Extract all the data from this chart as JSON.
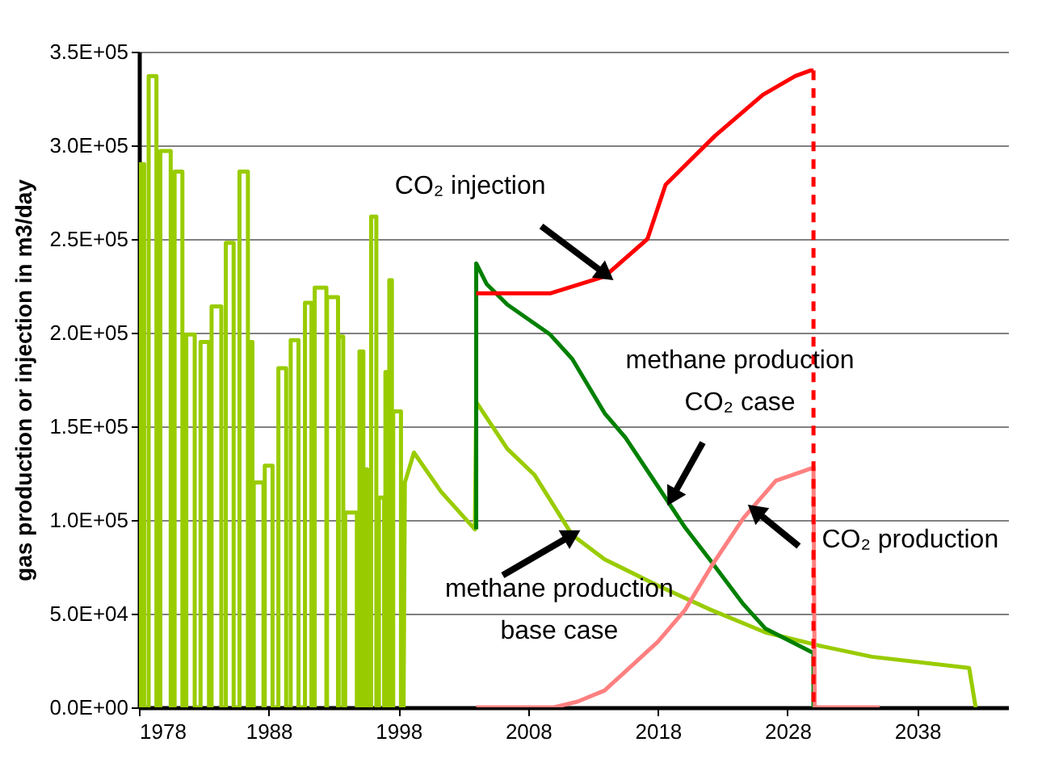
{
  "chart_data": {
    "type": "line",
    "ylabel": "gas production or injection in m3/day",
    "xlim": [
      1978,
      2045
    ],
    "xticks": [
      1978,
      1988,
      1998,
      2008,
      2018,
      2028,
      2038
    ],
    "ylim": [
      0,
      350000
    ],
    "yticks": [
      {
        "value": 0,
        "label": "0.0E+00"
      },
      {
        "value": 50000,
        "label": "5.0E+04"
      },
      {
        "value": 100000,
        "label": "1.0E+05"
      },
      {
        "value": 150000,
        "label": "1.5E+05"
      },
      {
        "value": 200000,
        "label": "2.0E+05"
      },
      {
        "value": 250000,
        "label": "2.5E+05"
      },
      {
        "value": 300000,
        "label": "3.0E+05"
      },
      {
        "value": 350000,
        "label": "3.5E+05"
      }
    ],
    "grid": "y",
    "series": [
      {
        "color": "#99cc00",
        "x": [
          1978.1,
          1978.1,
          1978.4,
          1978.4,
          1978.75,
          1978.75,
          1979.35,
          1979.35,
          1979.65,
          1979.65,
          1980.45,
          1980.45,
          1980.75,
          1980.75,
          1981.35,
          1981.35,
          1981.65,
          1981.65,
          1982.3,
          1982.3,
          1982.75,
          1982.75,
          1983.4,
          1983.4,
          1983.6,
          1983.6,
          1984.35,
          1984.35,
          1984.7,
          1984.7,
          1985.3,
          1985.3,
          1985.75,
          1985.75,
          1986.4,
          1986.4,
          1986.45,
          1986.45,
          1986.75,
          1986.75,
          1986.85,
          1986.85,
          1987.6,
          1987.6,
          1987.7,
          1987.7,
          1988.3,
          1988.3,
          1988.75,
          1988.75,
          1989.35,
          1989.35,
          1989.7,
          1989.7,
          1990.3,
          1990.3,
          1990.8,
          1990.8,
          1991.3,
          1991.3,
          1991.55,
          1991.55,
          1992.45,
          1992.45,
          1992.5,
          1992.5,
          1993.35,
          1993.35,
          1993.4,
          1993.4,
          1993.75,
          1993.75,
          1993.9,
          1993.9,
          1994.8,
          1994.8,
          1995.0,
          1995.0,
          1995.3,
          1995.3,
          1995.4,
          1995.4,
          1995.6,
          1995.6,
          1995.9,
          1995.9,
          1996.3,
          1996.3,
          1996.5,
          1996.5,
          1996.9,
          1996.9,
          1997.0,
          1997.0,
          1997.2,
          1997.2,
          1997.3,
          1997.3,
          1997.5,
          1997.5,
          1997.6,
          1997.6,
          1998.2,
          1998.2,
          1998.4,
          1998.5,
          1999.2,
          2001.3,
          2003.9,
          2004.0,
          2006.4,
          2008.5,
          2011.4,
          2013.9,
          2018,
          2022.1,
          2026.3,
          2030.4,
          2034.5,
          2042,
          2042.5
        ],
        "values": [
          0,
          290000,
          290000,
          0,
          0,
          337000,
          337000,
          0,
          0,
          297000,
          297000,
          0,
          0,
          286000,
          286000,
          0,
          0,
          199000,
          199000,
          0,
          0,
          195000,
          195000,
          0,
          0,
          214000,
          214000,
          0,
          0,
          248000,
          248000,
          0,
          0,
          286000,
          286000,
          0,
          0,
          195000,
          195000,
          0,
          0,
          120000,
          120000,
          0,
          0,
          129000,
          129000,
          0,
          0,
          181000,
          181000,
          0,
          0,
          196000,
          196000,
          0,
          0,
          216000,
          216000,
          0,
          0,
          224000,
          224000,
          0,
          0,
          219000,
          219000,
          0,
          0,
          198000,
          198000,
          0,
          0,
          104000,
          104000,
          0,
          0,
          190000,
          190000,
          0,
          0,
          127000,
          127000,
          0,
          0,
          262000,
          262000,
          0,
          0,
          112000,
          112000,
          0,
          0,
          179000,
          179000,
          0,
          0,
          228000,
          228000,
          0,
          0,
          158000,
          158000,
          0,
          0,
          120000,
          136000,
          115000,
          95000,
          163000,
          138000,
          124000,
          92000,
          79000,
          65000,
          52000,
          40000,
          33000,
          27000,
          21000,
          0
        ]
      },
      {
        "color": "#008000",
        "x": [
          2004.0,
          2004.0,
          2004.8,
          2006.4,
          2009.7,
          2011.4,
          2013.9,
          2015.5,
          2018,
          2020.1,
          2022.1,
          2024.6,
          2026.3,
          2030,
          2030
        ],
        "values": [
          95000,
          237000,
          226000,
          215000,
          199000,
          186000,
          157000,
          144000,
          118000,
          96000,
          78000,
          55000,
          42000,
          29000,
          0
        ]
      },
      {
        "color": "#ff8080",
        "x": [
          2004.0,
          2010.0,
          2011.8,
          2013.9,
          2018,
          2020.1,
          2022.1,
          2024.6,
          2027.1,
          2030,
          2030.1,
          2035.1
        ],
        "values": [
          0,
          0,
          3000,
          9000,
          35000,
          52000,
          75000,
          101000,
          121000,
          128000,
          0,
          0
        ]
      },
      {
        "color": "#ff0000",
        "x": [
          2004.0,
          2009.7,
          2013.9,
          2017.2,
          2018.6,
          2022.4,
          2026.1,
          2028.6,
          2029.8,
          2030
        ],
        "values": [
          221000,
          221000,
          230000,
          250000,
          279000,
          305000,
          327000,
          337000,
          340000,
          340000
        ]
      },
      {
        "color": "#ff0000",
        "line_style": "dashed",
        "x": [
          2030,
          2030
        ],
        "values": [
          340000,
          0
        ]
      }
    ],
    "annotations": [
      {
        "text": "CO₂ injection",
        "x": 2014,
        "y": 231000
      },
      {
        "text": "methane production\nCO₂ case",
        "x": 2019.1,
        "y": 112000
      },
      {
        "text": "methane production\nbase case",
        "x": 2011.4,
        "y": 92000
      },
      {
        "text": "CO₂ production",
        "x": 2025.5,
        "y": 105000
      }
    ]
  }
}
